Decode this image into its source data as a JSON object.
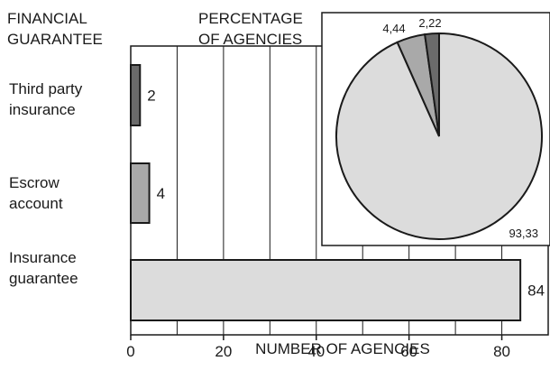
{
  "chart_data": [
    {
      "type": "bar",
      "orientation": "horizontal",
      "category_header": [
        "FINANCIAL",
        "GUARANTEE"
      ],
      "categories": [
        [
          "Third party",
          "insurance"
        ],
        [
          "Escrow",
          "account"
        ],
        [
          "Insurance",
          "guarantee"
        ]
      ],
      "values": [
        2,
        4,
        84
      ],
      "data_labels": [
        "2",
        "4",
        "84"
      ],
      "xlabel": "NUMBER OF AGENCIES",
      "xlim": [
        0,
        90
      ],
      "xticks": [
        0,
        20,
        40,
        60,
        80
      ],
      "grid": "vertical lines every 10",
      "colors": {
        "Third party insurance": "#6b6b6b",
        "Escrow account": "#a9a9a9",
        "Insurance guarantee": "#dcdcdc"
      }
    },
    {
      "type": "pie",
      "title": [
        "PERCENTAGE",
        "OF AGENCIES"
      ],
      "slices": [
        {
          "category": "Insurance guarantee",
          "value": 93.33,
          "label": "93,33",
          "color": "#dcdcdc"
        },
        {
          "category": "Escrow account",
          "value": 4.44,
          "label": "4,44",
          "color": "#a9a9a9"
        },
        {
          "category": "Third party insurance",
          "value": 2.22,
          "label": "2,22",
          "color": "#6b6b6b"
        }
      ],
      "placement": "inset top-right"
    }
  ]
}
